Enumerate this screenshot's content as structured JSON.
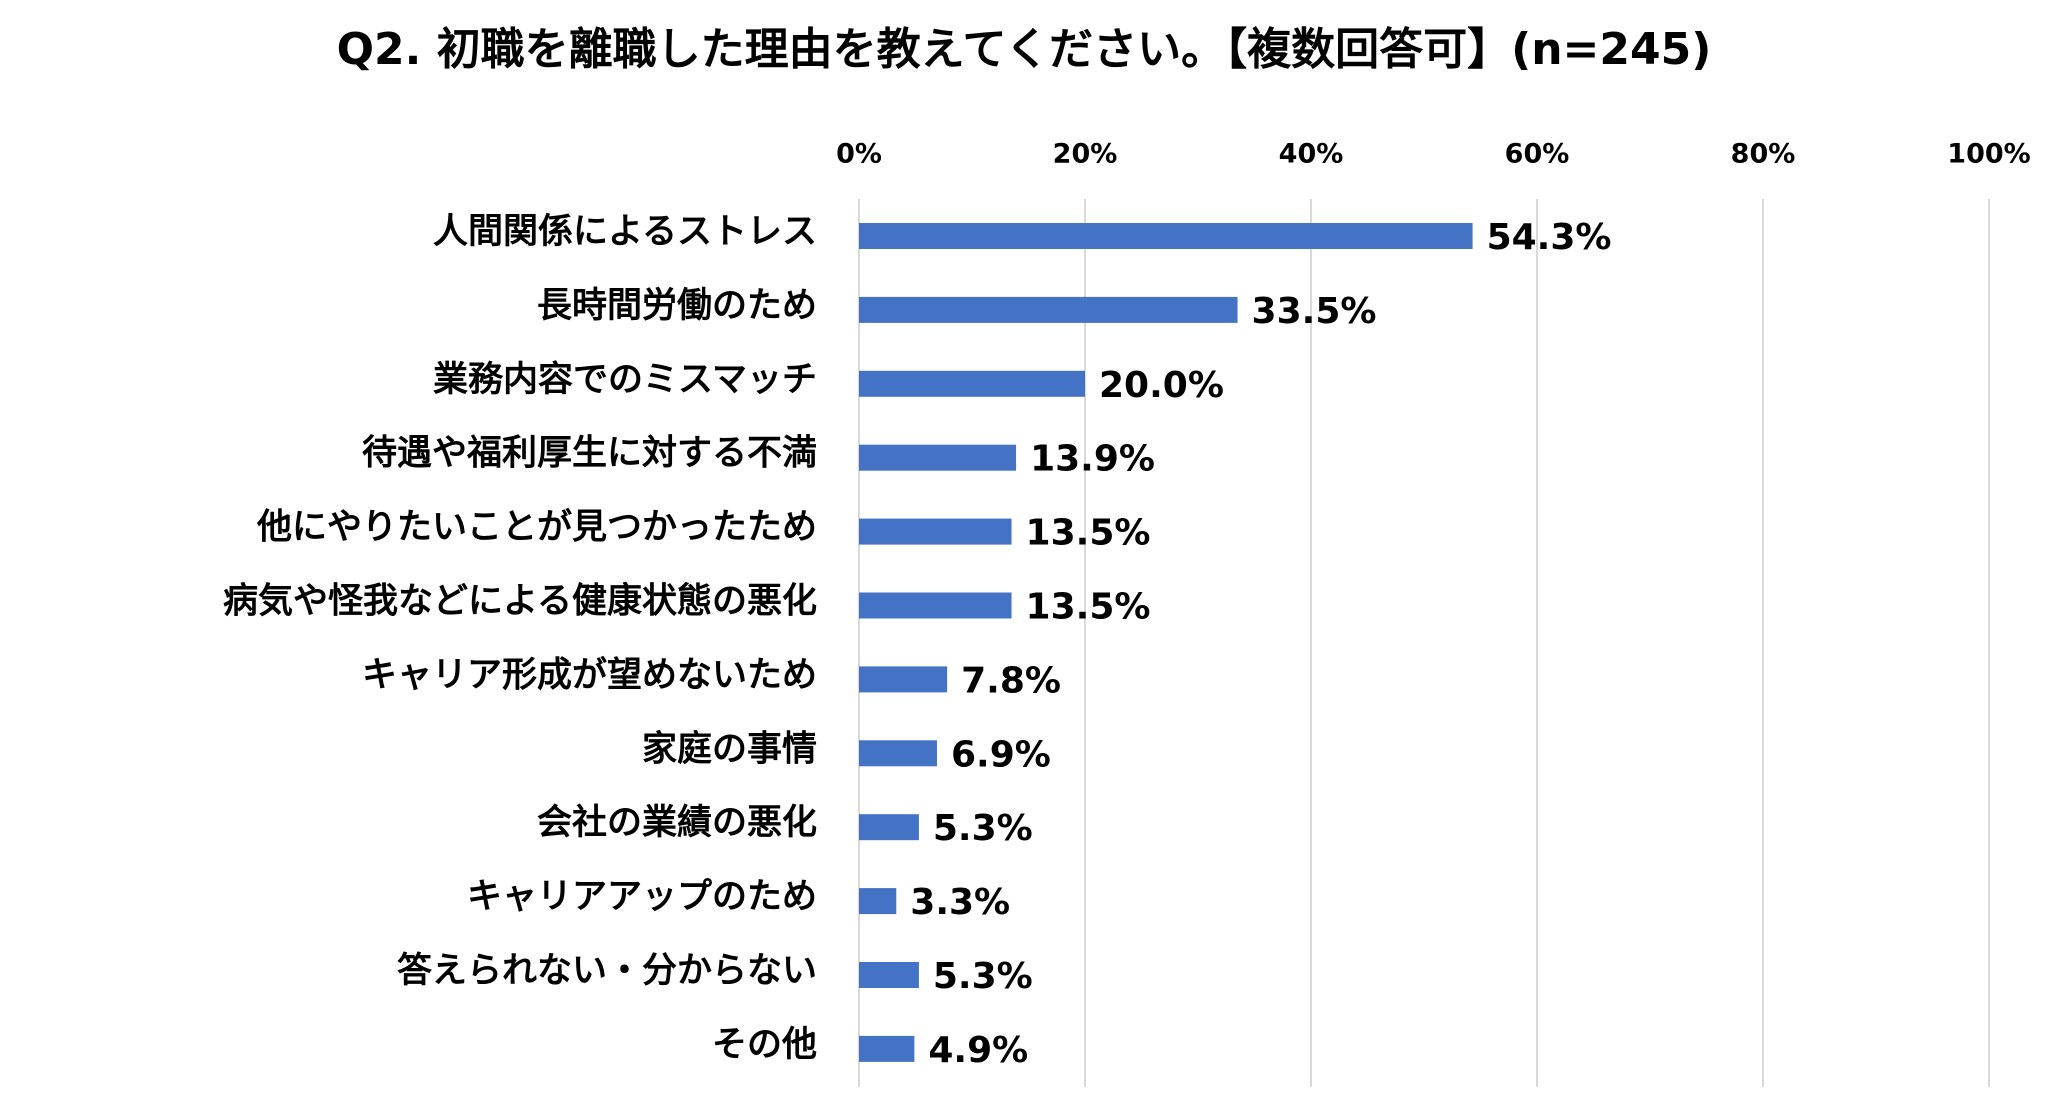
{
  "chart_data": {
    "type": "bar",
    "orientation": "horizontal",
    "title": "Q2. 初職を離職した理由を教えてください。【複数回答可】(n=245)",
    "categories": [
      "人間関係によるストレス",
      "長時間労働のため",
      "業務内容でのミスマッチ",
      "待遇や福利厚生に対する不満",
      "他にやりたいことが見つかったため",
      "病気や怪我などによる健康状態の悪化",
      "キャリア形成が望めないため",
      "家庭の事情",
      "会社の業績の悪化",
      "キャリアアップのため",
      "答えられない・分からない",
      "その他"
    ],
    "values": [
      54.3,
      33.5,
      20.0,
      13.9,
      13.5,
      13.5,
      7.8,
      6.9,
      5.3,
      3.3,
      5.3,
      4.9
    ],
    "value_labels": [
      "54.3%",
      "33.5%",
      "20.0%",
      "13.9%",
      "13.5%",
      "13.5%",
      "7.8%",
      "6.9%",
      "5.3%",
      "3.3%",
      "5.3%",
      "4.9%"
    ],
    "color": "#4472c4",
    "xlim": [
      0,
      100
    ],
    "xticks": [
      {
        "value": 0,
        "label": "0%"
      },
      {
        "value": 20,
        "label": "20%"
      },
      {
        "value": 40,
        "label": "40%"
      },
      {
        "value": 60,
        "label": "60%"
      },
      {
        "value": 80,
        "label": "80%"
      },
      {
        "value": 100,
        "label": "100%"
      }
    ],
    "grid": true
  }
}
